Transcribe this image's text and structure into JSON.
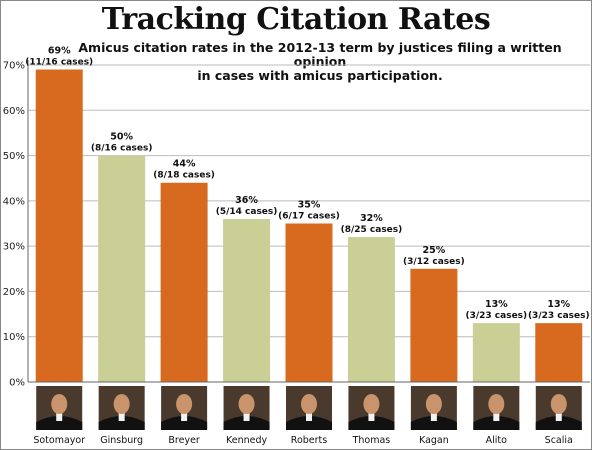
{
  "chart_data": {
    "type": "bar",
    "title": "Tracking Citation Rates",
    "subtitle_lines": [
      "Amicus citation rates in the 2012-13 term by justices filing a written opinion",
      "in cases with amicus participation."
    ],
    "categories": [
      "Sotomayor",
      "Ginsburg",
      "Breyer",
      "Kennedy",
      "Roberts",
      "Thomas",
      "Kagan",
      "Alito",
      "Scalia"
    ],
    "values": [
      69,
      50,
      44,
      36,
      35,
      32,
      25,
      13,
      13
    ],
    "value_labels": [
      "69%",
      "50%",
      "44%",
      "36%",
      "35%",
      "32%",
      "25%",
      "13%",
      "13%"
    ],
    "case_labels": [
      "(11/16 cases)",
      "(8/16 cases)",
      "(8/18 cases)",
      "(5/14 cases)",
      "(6/17 cases)",
      "(8/25 cases)",
      "(3/12 cases)",
      "(3/23 cases)",
      "(3/23 cases)"
    ],
    "bar_colors": [
      "#d86a1f",
      "#c9cf95",
      "#d86a1f",
      "#c9cf95",
      "#d86a1f",
      "#c9cf95",
      "#d86a1f",
      "#c9cf95",
      "#d86a1f"
    ],
    "y_ticks": [
      0,
      10,
      20,
      30,
      40,
      50,
      60,
      70
    ],
    "y_tick_labels": [
      "0%",
      "10%",
      "20%",
      "30%",
      "40%",
      "50%",
      "60%",
      "70%"
    ],
    "ylim": [
      0,
      70
    ],
    "grid": true,
    "xlabel": "",
    "ylabel": ""
  },
  "colors": {
    "grid": "#bbbbbb",
    "axis": "#666666",
    "photo_background": "#4a3a2e",
    "robe": "#111111",
    "skin": "#c9946c"
  }
}
